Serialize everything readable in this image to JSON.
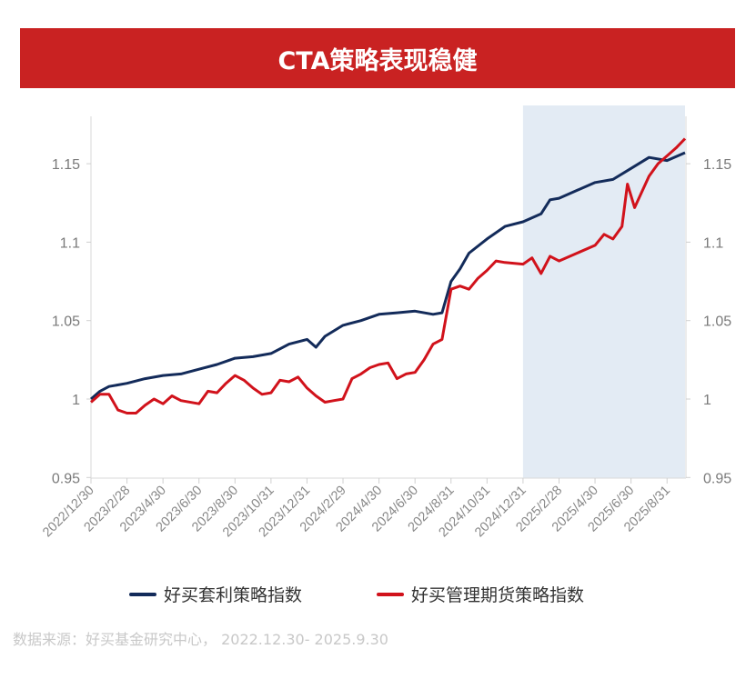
{
  "title": "CTA策略表现稳健",
  "source": "数据来源：好买基金研究中心， 2022.12.30- 2025.9.30",
  "colors": {
    "title_bg": "#c92222",
    "series1": "#132b5a",
    "series2": "#d1121b",
    "shade": "#e3ebf4"
  },
  "chart_data": {
    "type": "line",
    "title": "CTA策略表现稳健",
    "x_unit": "months since 2022/12/30",
    "xlim": [
      0,
      33
    ],
    "ylim": [
      0.95,
      1.17
    ],
    "yticks": [
      "1.15",
      "1.1",
      "1.05",
      "1",
      "0.95"
    ],
    "ytick_values": [
      1.15,
      1.1,
      1.05,
      1.0,
      0.95
    ],
    "xtick_labels": [
      "2022/12/30",
      "2023/2/28",
      "2023/4/30",
      "2023/6/30",
      "2023/8/30",
      "2023/10/31",
      "2023/12/31",
      "2024/2/29",
      "2024/4/30",
      "2024/6/30",
      "2024/8/31",
      "2024/10/31",
      "2024/12/31",
      "2025/2/28",
      "2025/4/30",
      "2025/6/30",
      "2025/8/31"
    ],
    "xtick_values": [
      0,
      2,
      4,
      6,
      8,
      10,
      12,
      14,
      16,
      18,
      20,
      22,
      24,
      26,
      28,
      30,
      32
    ],
    "shaded_range": [
      24,
      33
    ],
    "legend_position": "bottom",
    "series": [
      {
        "name": "好买套利策略指数",
        "x": [
          0,
          0.5,
          1,
          2,
          3,
          4,
          5,
          6,
          7,
          8,
          9,
          10,
          11,
          12,
          12.5,
          13,
          14,
          15,
          16,
          17,
          18,
          19,
          19.5,
          20,
          20.5,
          21,
          22,
          23,
          24,
          25,
          25.5,
          26,
          27,
          28,
          29,
          30,
          31,
          32,
          33
        ],
        "y": [
          1.0,
          1.005,
          1.008,
          1.01,
          1.013,
          1.015,
          1.016,
          1.019,
          1.022,
          1.026,
          1.027,
          1.029,
          1.035,
          1.038,
          1.033,
          1.04,
          1.047,
          1.05,
          1.054,
          1.055,
          1.056,
          1.054,
          1.055,
          1.075,
          1.083,
          1.093,
          1.102,
          1.11,
          1.113,
          1.118,
          1.127,
          1.128,
          1.133,
          1.138,
          1.14,
          1.147,
          1.154,
          1.152,
          1.157
        ]
      },
      {
        "name": "好买管理期货策略指数",
        "x": [
          0,
          0.5,
          1,
          1.5,
          2,
          2.5,
          3,
          3.5,
          4,
          4.5,
          5,
          6,
          6.5,
          7,
          7.5,
          8,
          8.5,
          9,
          9.5,
          10,
          10.5,
          11,
          11.5,
          12,
          12.5,
          13,
          13.5,
          14,
          14.5,
          15,
          15.5,
          16,
          16.5,
          17,
          17.5,
          18,
          18.5,
          19,
          19.5,
          20,
          20.5,
          21,
          21.5,
          22,
          22.5,
          23,
          24,
          24.5,
          25,
          25.5,
          26,
          27,
          28,
          28.5,
          29,
          29.5,
          29.8,
          30.2,
          31,
          31.5,
          32,
          32.5,
          33
        ],
        "y": [
          0.998,
          1.003,
          1.003,
          0.993,
          0.991,
          0.991,
          0.996,
          1.0,
          0.997,
          1.002,
          0.999,
          0.997,
          1.005,
          1.004,
          1.01,
          1.015,
          1.012,
          1.007,
          1.003,
          1.004,
          1.012,
          1.011,
          1.014,
          1.007,
          1.002,
          0.998,
          0.999,
          1.0,
          1.013,
          1.016,
          1.02,
          1.022,
          1.023,
          1.013,
          1.016,
          1.017,
          1.025,
          1.035,
          1.038,
          1.07,
          1.072,
          1.07,
          1.077,
          1.082,
          1.088,
          1.087,
          1.086,
          1.09,
          1.08,
          1.091,
          1.088,
          1.093,
          1.098,
          1.105,
          1.102,
          1.11,
          1.137,
          1.122,
          1.142,
          1.15,
          1.155,
          1.16,
          1.166
        ]
      }
    ]
  }
}
